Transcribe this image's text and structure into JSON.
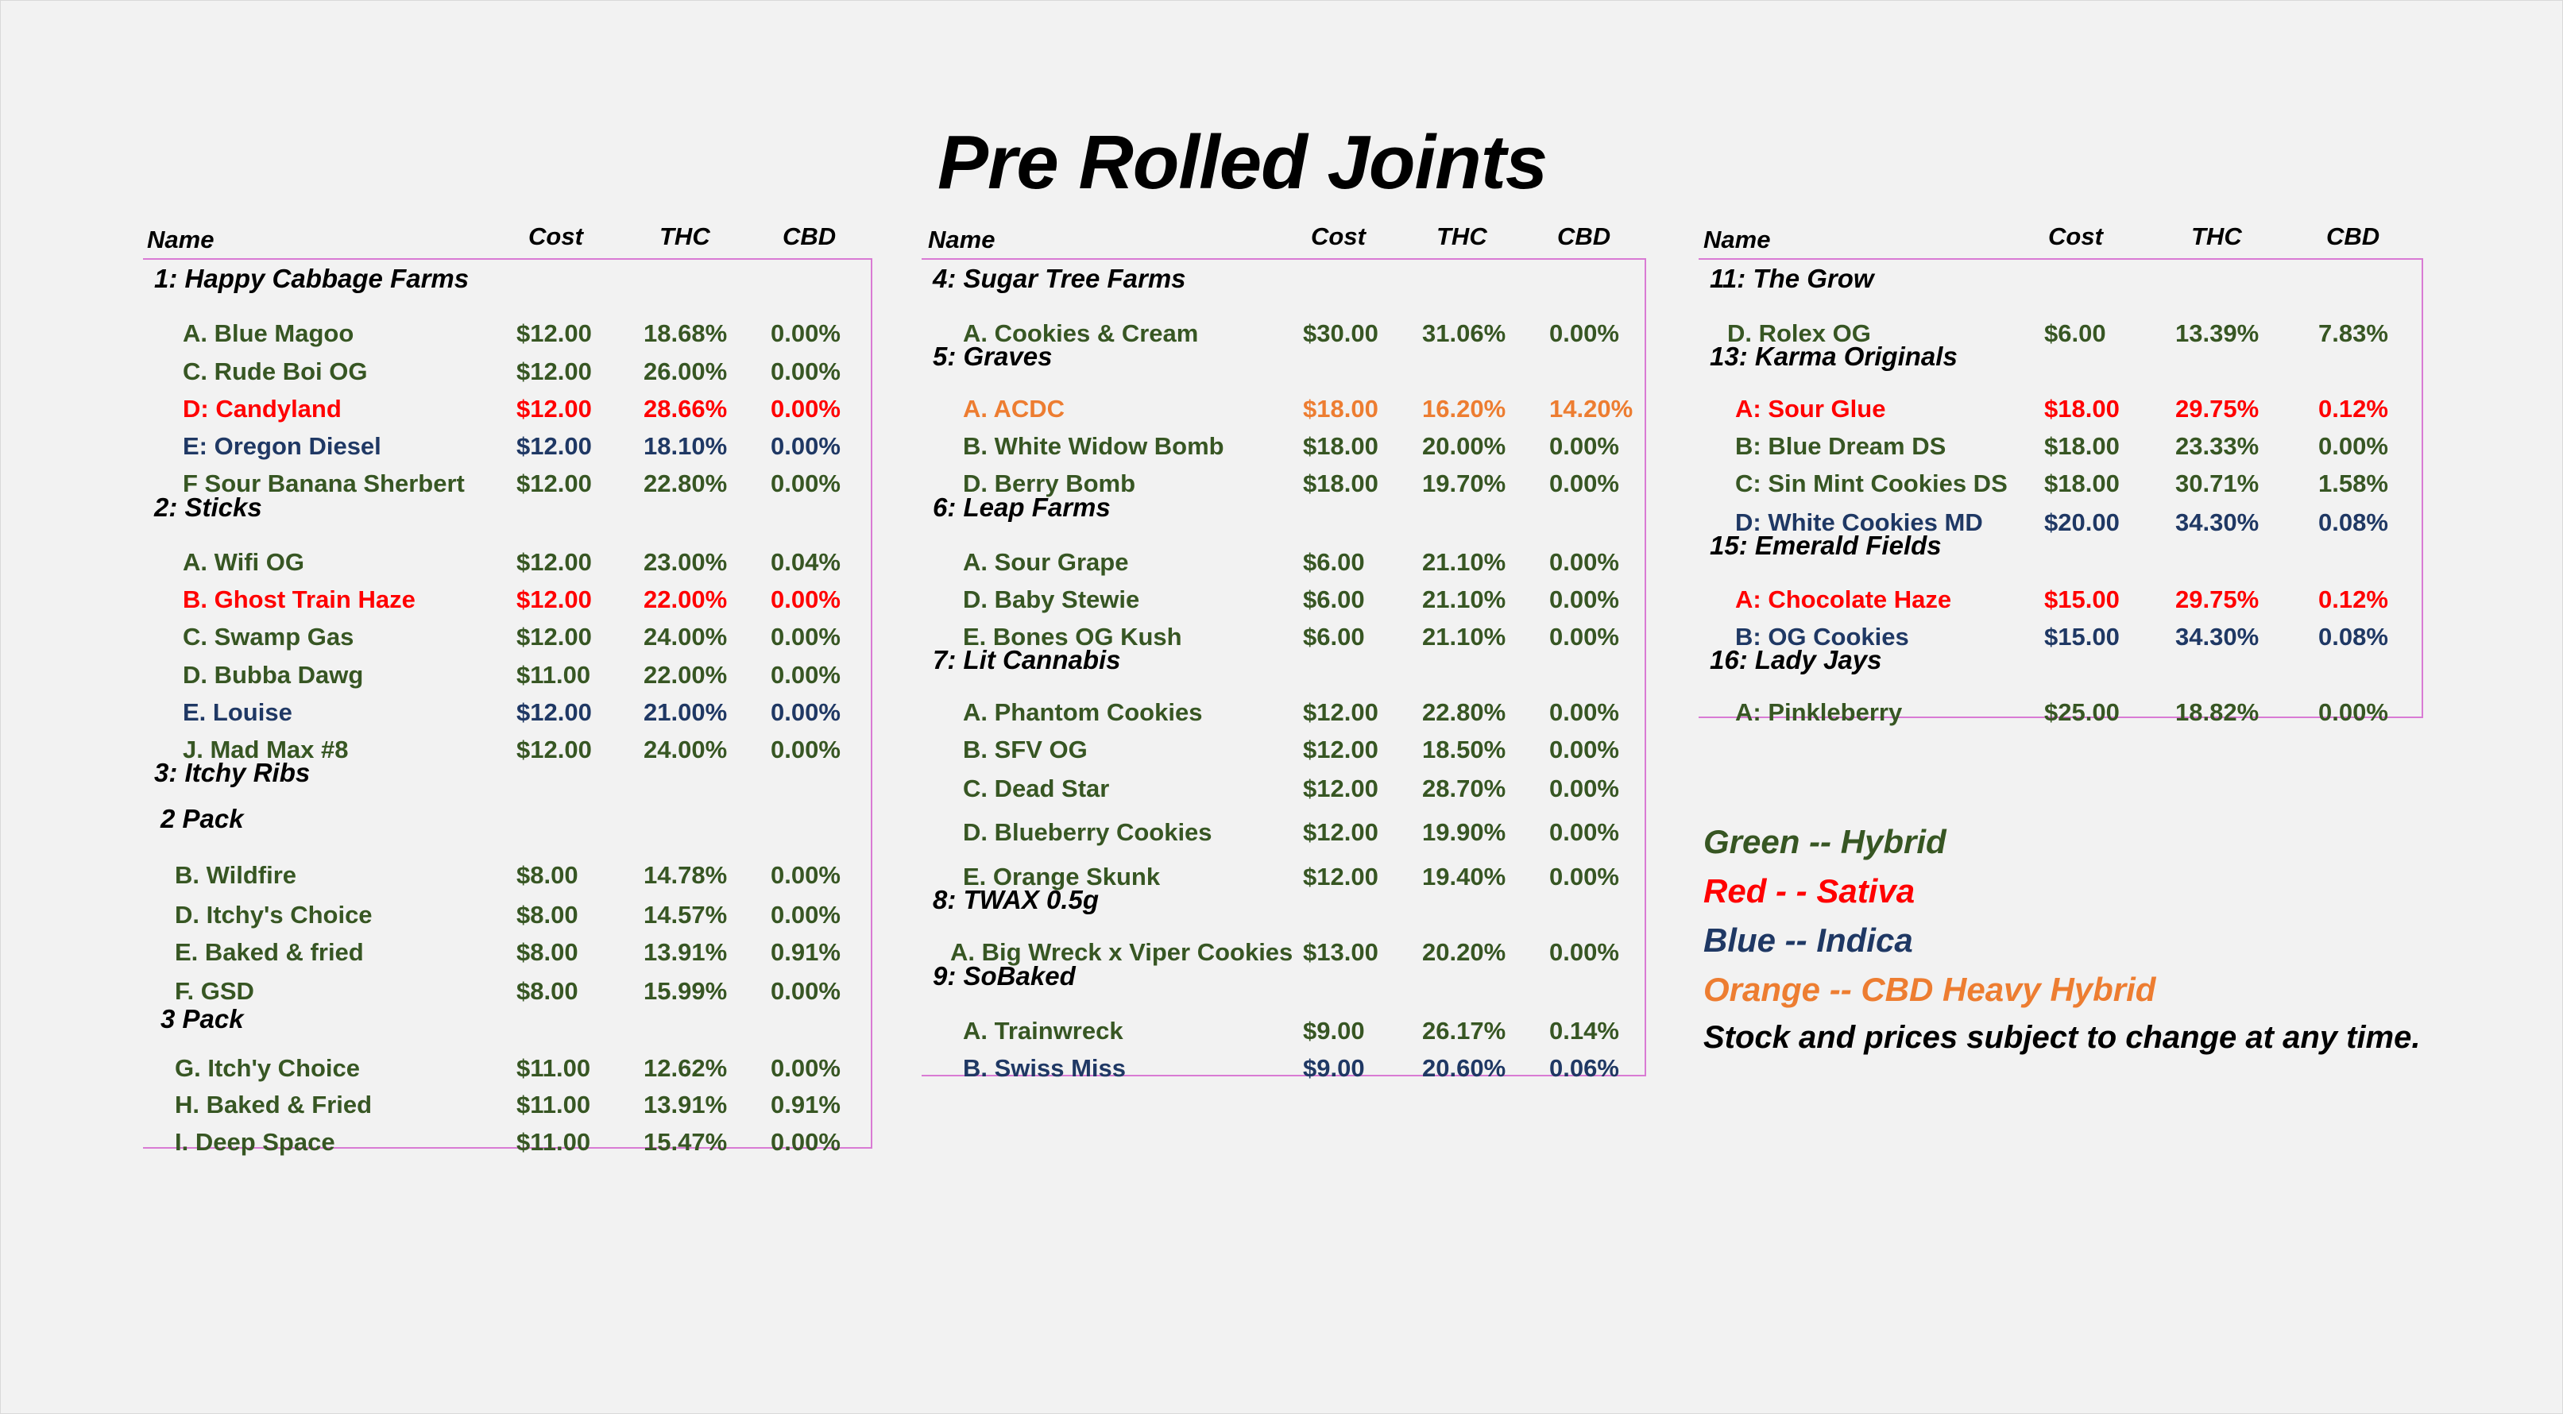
{
  "title": "Pre Rolled Joints",
  "headers": {
    "name": "Name",
    "cost": "Cost",
    "thc": "THC",
    "cbd": "CBD"
  },
  "colors": {
    "green": "#375623",
    "red": "#ff0000",
    "blue": "#1f3864",
    "orange": "#ed7d31",
    "black": "#000000"
  },
  "columns": [
    {
      "groups": [
        {
          "title": "1: Happy Cabbage Farms",
          "items": [
            {
              "name": "A. Blue Magoo",
              "cost": "$12.00",
              "thc": "18.68%",
              "cbd": "0.00%",
              "color": "green"
            },
            {
              "name": "C. Rude Boi OG",
              "cost": "$12.00",
              "thc": "26.00%",
              "cbd": "0.00%",
              "color": "green"
            },
            {
              "name": "D: Candyland",
              "cost": "$12.00",
              "thc": "28.66%",
              "cbd": "0.00%",
              "color": "red"
            },
            {
              "name": "E: Oregon Diesel",
              "cost": "$12.00",
              "thc": "18.10%",
              "cbd": "0.00%",
              "color": "blue"
            },
            {
              "name": "F Sour Banana Sherbert",
              "cost": "$12.00",
              "thc": "22.80%",
              "cbd": "0.00%",
              "color": "green"
            }
          ]
        },
        {
          "title": "2: Sticks",
          "items": [
            {
              "name": "A. Wifi OG",
              "cost": "$12.00",
              "thc": "23.00%",
              "cbd": "0.04%",
              "color": "green"
            },
            {
              "name": "B. Ghost Train Haze",
              "cost": "$12.00",
              "thc": "22.00%",
              "cbd": "0.00%",
              "color": "red"
            },
            {
              "name": "C. Swamp Gas",
              "cost": "$12.00",
              "thc": "24.00%",
              "cbd": "0.00%",
              "color": "green"
            },
            {
              "name": "D. Bubba Dawg",
              "cost": "$11.00",
              "thc": "22.00%",
              "cbd": "0.00%",
              "color": "green"
            },
            {
              "name": "E. Louise",
              "cost": "$12.00",
              "thc": "21.00%",
              "cbd": "0.00%",
              "color": "blue"
            },
            {
              "name": "J. Mad Max #8",
              "cost": "$12.00",
              "thc": "24.00%",
              "cbd": "0.00%",
              "color": "green"
            }
          ]
        },
        {
          "title": "3:  Itchy Ribs",
          "items": []
        },
        {
          "title": "2 Pack",
          "items": [
            {
              "name": "B. Wildfire",
              "cost": "$8.00",
              "thc": "14.78%",
              "cbd": "0.00%",
              "color": "green"
            },
            {
              "name": "D. Itchy's Choice",
              "cost": "$8.00",
              "thc": "14.57%",
              "cbd": "0.00%",
              "color": "green"
            },
            {
              "name": "E. Baked & fried",
              "cost": "$8.00",
              "thc": "13.91%",
              "cbd": "0.91%",
              "color": "green"
            },
            {
              "name": "F. GSD",
              "cost": "$8.00",
              "thc": "15.99%",
              "cbd": "0.00%",
              "color": "green"
            }
          ]
        },
        {
          "title": "3 Pack",
          "items": [
            {
              "name": "G. Itch'y Choice",
              "cost": "$11.00",
              "thc": "12.62%",
              "cbd": "0.00%",
              "color": "green"
            },
            {
              "name": "H. Baked & Fried",
              "cost": "$11.00",
              "thc": "13.91%",
              "cbd": "0.91%",
              "color": "green"
            },
            {
              "name": "I. Deep Space",
              "cost": "$11.00",
              "thc": "15.47%",
              "cbd": "0.00%",
              "color": "green"
            }
          ]
        }
      ]
    },
    {
      "groups": [
        {
          "title": "4: Sugar Tree Farms",
          "items": [
            {
              "name": "A. Cookies & Cream",
              "cost": "$30.00",
              "thc": "31.06%",
              "cbd": "0.00%",
              "color": "green"
            }
          ]
        },
        {
          "title": "5: Graves",
          "items": [
            {
              "name": "A. ACDC",
              "cost": "$18.00",
              "thc": "16.20%",
              "cbd": "14.20%",
              "color": "orange"
            },
            {
              "name": "B. White Widow Bomb",
              "cost": "$18.00",
              "thc": "20.00%",
              "cbd": "0.00%",
              "color": "green"
            },
            {
              "name": "D. Berry Bomb",
              "cost": "$18.00",
              "thc": "19.70%",
              "cbd": "0.00%",
              "color": "green"
            }
          ]
        },
        {
          "title": "6: Leap Farms",
          "items": [
            {
              "name": "A. Sour Grape",
              "cost": "$6.00",
              "thc": "21.10%",
              "cbd": "0.00%",
              "color": "green"
            },
            {
              "name": "D. Baby Stewie",
              "cost": "$6.00",
              "thc": "21.10%",
              "cbd": "0.00%",
              "color": "green"
            },
            {
              "name": "E. Bones OG Kush",
              "cost": "$6.00",
              "thc": "21.10%",
              "cbd": "0.00%",
              "color": "green"
            }
          ]
        },
        {
          "title": "7: Lit Cannabis",
          "items": [
            {
              "name": "A. Phantom Cookies",
              "cost": "$12.00",
              "thc": "22.80%",
              "cbd": "0.00%",
              "color": "green"
            },
            {
              "name": "B. SFV OG",
              "cost": "$12.00",
              "thc": "18.50%",
              "cbd": "0.00%",
              "color": "green"
            },
            {
              "name": "C. Dead Star",
              "cost": "$12.00",
              "thc": "28.70%",
              "cbd": "0.00%",
              "color": "green"
            },
            {
              "name": "D. Blueberry Cookies",
              "cost": "$12.00",
              "thc": "19.90%",
              "cbd": "0.00%",
              "color": "green"
            },
            {
              "name": "E. Orange Skunk",
              "cost": "$12.00",
              "thc": "19.40%",
              "cbd": "0.00%",
              "color": "green"
            }
          ]
        },
        {
          "title": "8: TWAX 0.5g",
          "items": [
            {
              "name": "A. Big Wreck x Viper Cookies",
              "cost": "$13.00",
              "thc": "20.20%",
              "cbd": "0.00%",
              "color": "green"
            }
          ]
        },
        {
          "title": "9: SoBaked",
          "items": [
            {
              "name": "A. Trainwreck",
              "cost": "$9.00",
              "thc": "26.17%",
              "cbd": "0.14%",
              "color": "green"
            },
            {
              "name": "B. Swiss Miss",
              "cost": "$9.00",
              "thc": "20.60%",
              "cbd": "0.06%",
              "color": "blue"
            }
          ]
        }
      ]
    },
    {
      "groups": [
        {
          "title": "11: The Grow",
          "items": [
            {
              "name": "D. Rolex OG",
              "cost": "$6.00",
              "thc": "13.39%",
              "cbd": "7.83%",
              "color": "green"
            }
          ]
        },
        {
          "title": "13: Karma Originals",
          "items": [
            {
              "name": "A: Sour Glue",
              "cost": "$18.00",
              "thc": "29.75%",
              "cbd": "0.12%",
              "color": "red"
            },
            {
              "name": "B: Blue Dream DS",
              "cost": "$18.00",
              "thc": "23.33%",
              "cbd": "0.00%",
              "color": "green"
            },
            {
              "name": "C: Sin Mint Cookies DS",
              "cost": "$18.00",
              "thc": "30.71%",
              "cbd": "1.58%",
              "color": "green"
            },
            {
              "name": "D: White Cookies MD",
              "cost": "$20.00",
              "thc": "34.30%",
              "cbd": "0.08%",
              "color": "blue"
            }
          ]
        },
        {
          "title": "15: Emerald Fields",
          "items": [
            {
              "name": "A: Chocolate Haze",
              "cost": "$15.00",
              "thc": "29.75%",
              "cbd": "0.12%",
              "color": "red"
            },
            {
              "name": "B: OG Cookies",
              "cost": "$15.00",
              "thc": "34.30%",
              "cbd": "0.08%",
              "color": "blue"
            }
          ]
        },
        {
          "title": "16: Lady Jays",
          "items": [
            {
              "name": "A: Pinkleberry",
              "cost": "$25.00",
              "thc": "18.82%",
              "cbd": "0.00%",
              "color": "green"
            }
          ]
        }
      ]
    }
  ],
  "legend": [
    {
      "text": "Green  --  Hybrid",
      "color": "green"
    },
    {
      "text": "Red  - -  Sativa",
      "color": "red"
    },
    {
      "text": "Blue  --  Indica",
      "color": "blue"
    },
    {
      "text": "Orange  --  CBD Heavy Hybrid",
      "color": "orange"
    },
    {
      "text": "Stock and prices subject to change at any time.",
      "color": "black"
    }
  ]
}
